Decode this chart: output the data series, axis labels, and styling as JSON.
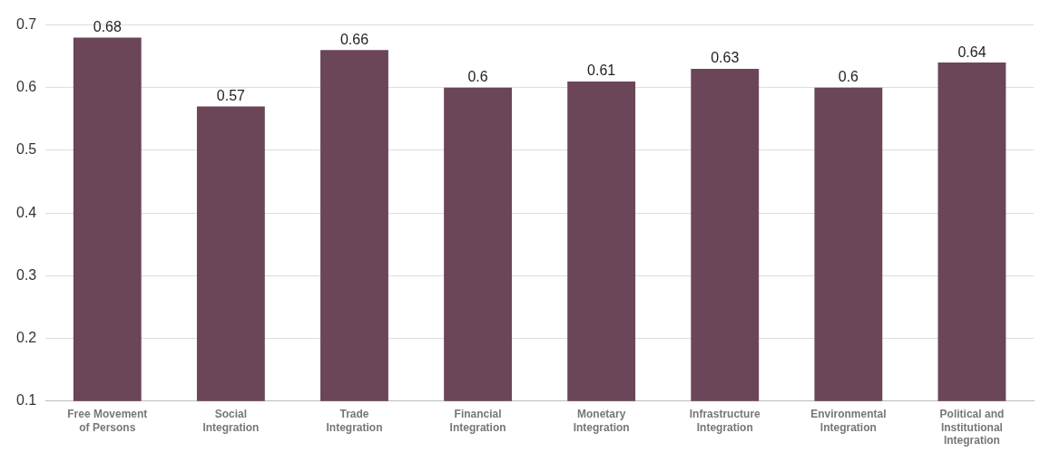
{
  "chart_data": {
    "type": "bar",
    "categories": [
      "Free Movement of Persons",
      "Social Integration",
      "Trade Integration",
      "Financial Integration",
      "Monetary Integration",
      "Infrastructure Integration",
      "Environmental Integration",
      "Political and Institutional Integration"
    ],
    "values": [
      0.68,
      0.57,
      0.66,
      0.6,
      0.61,
      0.63,
      0.6,
      0.64
    ],
    "color": "#6b4558",
    "ylim": [
      0.1,
      0.7
    ],
    "yticks": [
      0.1,
      0.2,
      0.3,
      0.4,
      0.5,
      0.6,
      0.7
    ],
    "grid": "y",
    "data_labels": true,
    "legend": false
  }
}
